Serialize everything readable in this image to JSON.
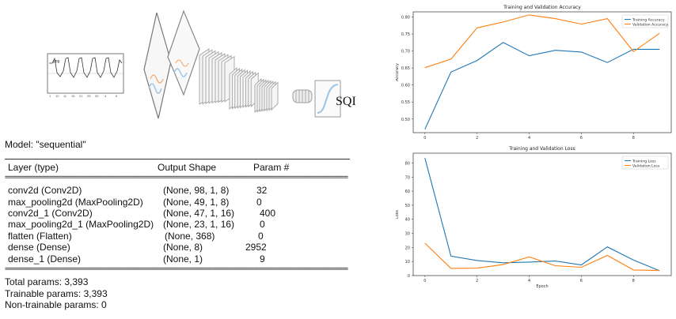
{
  "diagram": {
    "sqi_label": "SQI",
    "signal_inset_label": "ppg"
  },
  "model": {
    "title": "Model: \"sequential\"",
    "headers": [
      "Layer (type)",
      "Output Shape",
      "Param #"
    ],
    "rule_eq": "==================================================================================================",
    "layers": [
      {
        "name": "conv2d (Conv2D)",
        "shape": "(None, 98, 1, 8)",
        "params": "32"
      },
      {
        "name": "max_pooling2d (MaxPooling2D)",
        "shape": "(None, 49, 1, 8)",
        "params": "0"
      },
      {
        "name": "conv2d_1 (Conv2D)",
        "shape": "(None, 47, 1, 16)",
        "params": "400"
      },
      {
        "name": "max_pooling2d_1 (MaxPooling2D)",
        "shape": "(None, 23, 1, 16)",
        "params": "0"
      },
      {
        "name": "flatten (Flatten)",
        "shape": "(None, 368)",
        "params": "0"
      },
      {
        "name": "dense (Dense)",
        "shape": "(None, 8)",
        "params": "2952"
      },
      {
        "name": "dense_1 (Dense)",
        "shape": "(None, 1)",
        "params": "9"
      }
    ],
    "totals": [
      "Total params: 3,393",
      "Trainable params: 3,393",
      "Non-trainable params: 0"
    ]
  },
  "colors": {
    "training": "#1f77b4",
    "validation": "#ff7f0e"
  },
  "chart_data": [
    {
      "type": "line",
      "title": "Training and Validation Accuracy",
      "xlabel": "",
      "ylabel": "Accuracy",
      "x": [
        0,
        1,
        2,
        3,
        4,
        5,
        6,
        7,
        8,
        9
      ],
      "xticks": [
        0,
        2,
        4,
        6,
        8
      ],
      "yticks": [
        0.5,
        0.55,
        0.6,
        0.65,
        0.7,
        0.75,
        0.8
      ],
      "ytick_labels": [
        "0.50",
        "0.55",
        "0.60",
        "0.65",
        "0.70",
        "0.75",
        "0.80"
      ],
      "xlim": [
        -0.45,
        9.45
      ],
      "ylim": [
        0.46,
        0.815
      ],
      "legend_position": "top-right",
      "series": [
        {
          "name": "Training Accuracy",
          "values": [
            0.47,
            0.638,
            0.672,
            0.725,
            0.686,
            0.702,
            0.697,
            0.666,
            0.705,
            0.705
          ]
        },
        {
          "name": "Validation Accuracy",
          "values": [
            0.651,
            0.676,
            0.768,
            0.785,
            0.806,
            0.795,
            0.779,
            0.795,
            0.698,
            0.752
          ]
        }
      ]
    },
    {
      "type": "line",
      "title": "Training and Validation Loss",
      "xlabel": "Epoch",
      "ylabel": "Loss",
      "x": [
        0,
        1,
        2,
        3,
        4,
        5,
        6,
        7,
        8,
        9
      ],
      "xticks": [
        0,
        2,
        4,
        6,
        8
      ],
      "yticks": [
        0,
        10,
        20,
        30,
        40,
        50,
        60,
        70,
        80
      ],
      "ytick_labels": [
        "0",
        "10",
        "20",
        "30",
        "40",
        "50",
        "60",
        "70",
        "80"
      ],
      "xlim": [
        -0.45,
        9.45
      ],
      "ylim": [
        0,
        87
      ],
      "legend_position": "top-right",
      "series": [
        {
          "name": "Training Loss",
          "values": [
            83.5,
            13.8,
            10.7,
            9.1,
            9.6,
            10.3,
            7.6,
            20.4,
            11.0,
            3.4
          ]
        },
        {
          "name": "Validation Loss",
          "values": [
            23.0,
            5.1,
            5.3,
            7.8,
            13.3,
            7.0,
            5.9,
            14.3,
            4.0,
            3.6
          ]
        }
      ]
    }
  ]
}
